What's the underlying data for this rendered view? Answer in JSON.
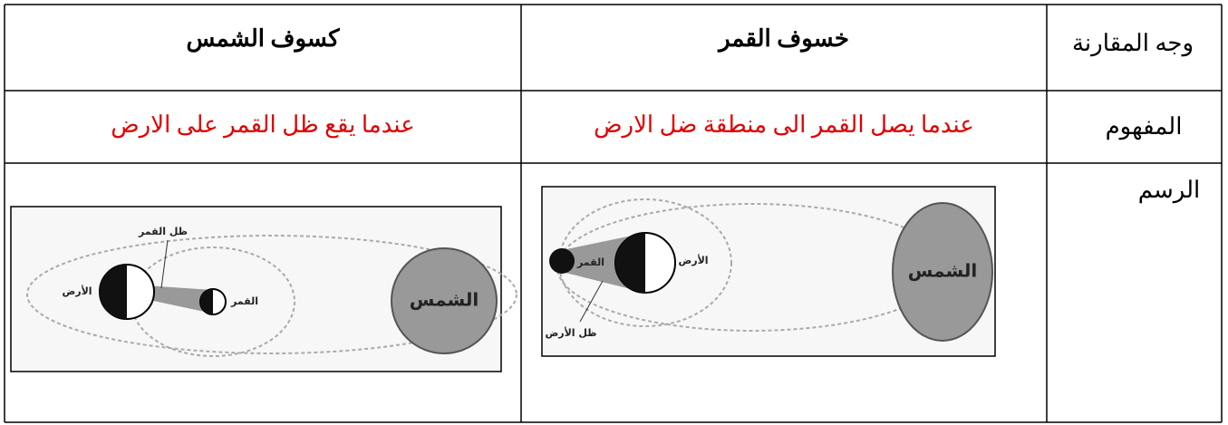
{
  "table": {
    "header": [
      "وجه المقارنة",
      "خسوف القمر",
      "كسوف الشمس"
    ],
    "rows": [
      [
        "المفهوم",
        "عندما يصل القمر الى منطقة ضل الارض",
        "عندما يقع ظل القمر على الارض"
      ],
      [
        "الرسم"
      ]
    ]
  },
  "diagrams": {
    "lunar_eclipse": {
      "sun": "الشمس",
      "earth": "الأرض",
      "moon": "القمر",
      "shadow": "ظل الأرض"
    },
    "solar_eclipse": {
      "sun": "الشمس",
      "earth": "الأرض",
      "moon": "القمر",
      "shadow": "ظل القمر"
    }
  }
}
